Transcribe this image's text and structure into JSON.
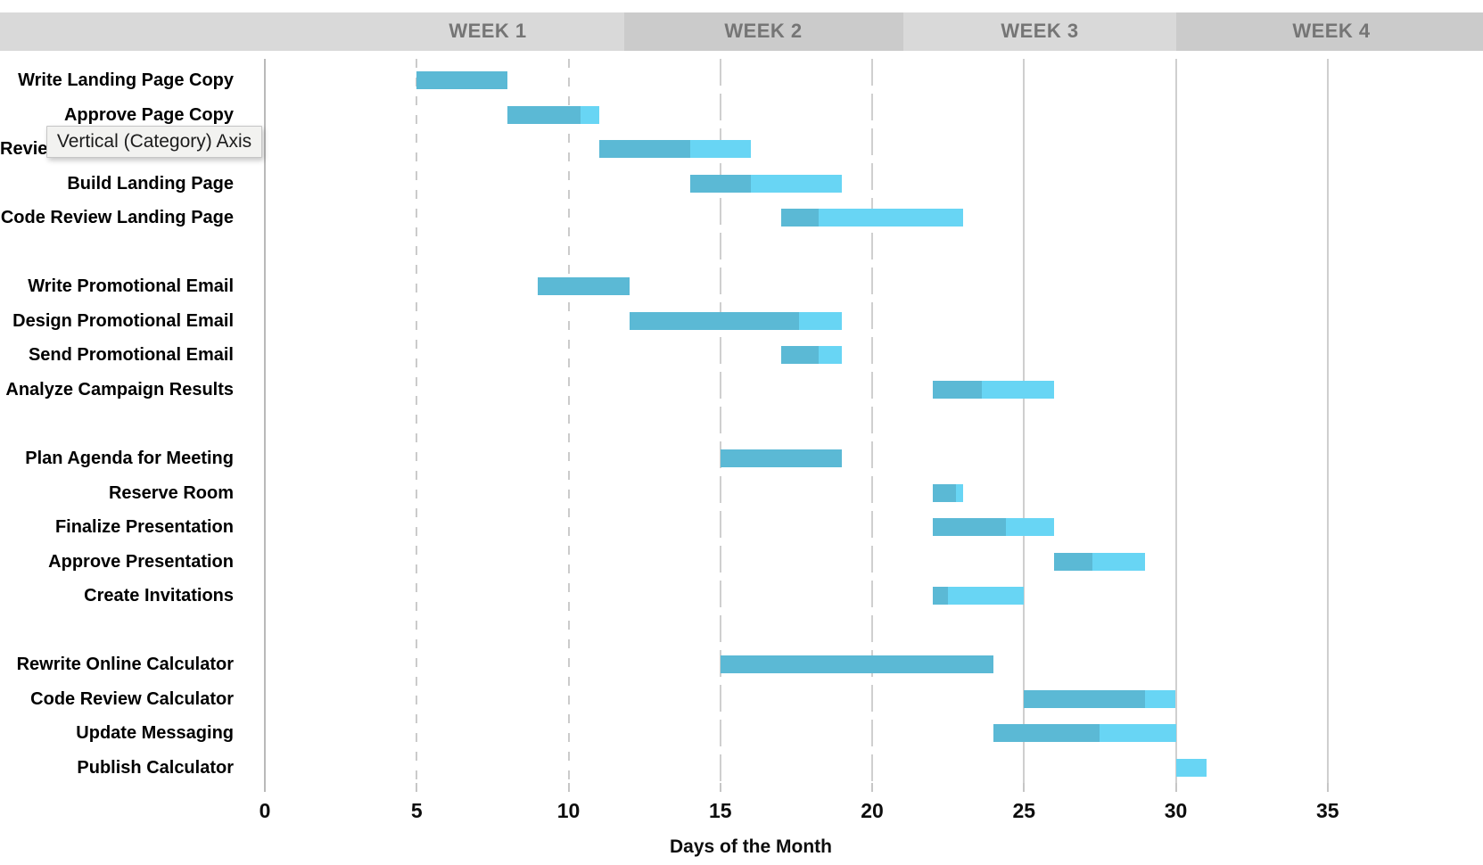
{
  "header": {
    "weeks": [
      {
        "label": "WEEK 1"
      },
      {
        "label": "WEEK 2"
      },
      {
        "label": "WEEK 3"
      },
      {
        "label": "WEEK 4"
      }
    ],
    "band_color_light": "#D9D9D9",
    "band_color_dark": "#CBCBCB",
    "text_color": "#757575"
  },
  "tooltip": {
    "text": "Vertical (Category) Axis"
  },
  "chart_data": {
    "type": "bar",
    "subtype": "gantt",
    "title": "",
    "xlabel": "Days of the Month",
    "ylabel": "",
    "x_ticks": [
      0,
      5,
      10,
      15,
      20,
      25,
      30,
      35
    ],
    "xlim": [
      0,
      36.5
    ],
    "grid": true,
    "legend": "none",
    "colors": {
      "complete": "#5BB9D5",
      "remaining": "#68D5F4"
    },
    "groups": [
      [
        {
          "label": "Write Landing Page Copy",
          "start": 5,
          "complete_to": 8,
          "end": 8
        },
        {
          "label": "Approve Page Copy",
          "start": 8,
          "complete_to": 10.4,
          "end": 11
        },
        {
          "label": "Review Landing Page Design",
          "start": 11,
          "complete_to": 14,
          "end": 16
        },
        {
          "label": "Build Landing Page",
          "start": 14,
          "complete_to": 16,
          "end": 19
        },
        {
          "label": "Code Review Landing Page",
          "start": 17,
          "complete_to": 18.25,
          "end": 23
        }
      ],
      [
        {
          "label": "Write Promotional Email",
          "start": 9,
          "complete_to": 12,
          "end": 12
        },
        {
          "label": "Design Promotional Email",
          "start": 12,
          "complete_to": 17.6,
          "end": 19
        },
        {
          "label": "Send Promotional Email",
          "start": 17,
          "complete_to": 18.25,
          "end": 19
        },
        {
          "label": "Analyze Campaign Results",
          "start": 22,
          "complete_to": 23.6,
          "end": 26
        }
      ],
      [
        {
          "label": "Plan Agenda for Meeting",
          "start": 15,
          "complete_to": 19,
          "end": 19
        },
        {
          "label": "Reserve Room",
          "start": 22,
          "complete_to": 22.75,
          "end": 23
        },
        {
          "label": "Finalize Presentation",
          "start": 22,
          "complete_to": 24.4,
          "end": 26
        },
        {
          "label": "Approve Presentation",
          "start": 26,
          "complete_to": 27.25,
          "end": 29
        },
        {
          "label": "Create Invitations",
          "start": 22,
          "complete_to": 22.5,
          "end": 25
        }
      ],
      [
        {
          "label": "Rewrite Online Calculator",
          "start": 15,
          "complete_to": 24,
          "end": 24
        },
        {
          "label": "Code Review Calculator",
          "start": 25,
          "complete_to": 29,
          "end": 30
        },
        {
          "label": "Update Messaging",
          "start": 24,
          "complete_to": 27.5,
          "end": 30
        },
        {
          "label": "Publish Calculator",
          "start": 30,
          "complete_to": 30,
          "end": 31
        }
      ]
    ]
  }
}
